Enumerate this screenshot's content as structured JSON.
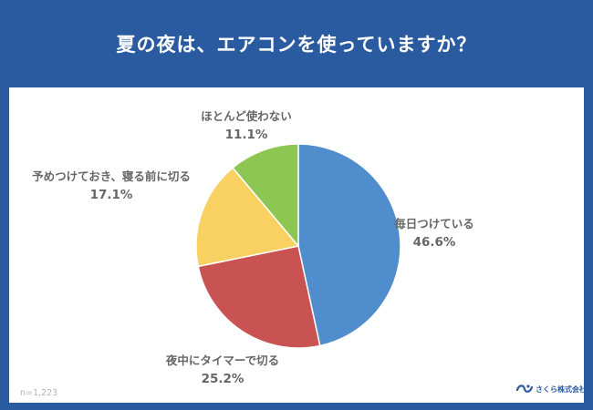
{
  "header": {
    "title": "夏の夜は、エアコンを使っていますか？"
  },
  "sample_note": "n=1,223",
  "logo": {
    "text": "さくら株式会社",
    "color": "#2a5a9f"
  },
  "colors": {
    "band": "#2a5a9f",
    "background": "#ffffff"
  },
  "chart_data": {
    "type": "pie",
    "title": "夏の夜は、エアコンを使っていますか？",
    "start": "top",
    "direction": "clockwise",
    "slices": [
      {
        "label": "毎日つけている",
        "value": 46.6,
        "value_label": "46.6%",
        "color": "#4f8dcc"
      },
      {
        "label": "夜中にタイマーで切る",
        "value": 25.2,
        "value_label": "25.2%",
        "color": "#c95252"
      },
      {
        "label": "予めつけておき、寝る前に切る",
        "value": 17.1,
        "value_label": "17.1%",
        "color": "#f8d162"
      },
      {
        "label": "ほとんど使わない",
        "value": 11.1,
        "value_label": "11.1%",
        "color": "#8dc653"
      }
    ]
  }
}
